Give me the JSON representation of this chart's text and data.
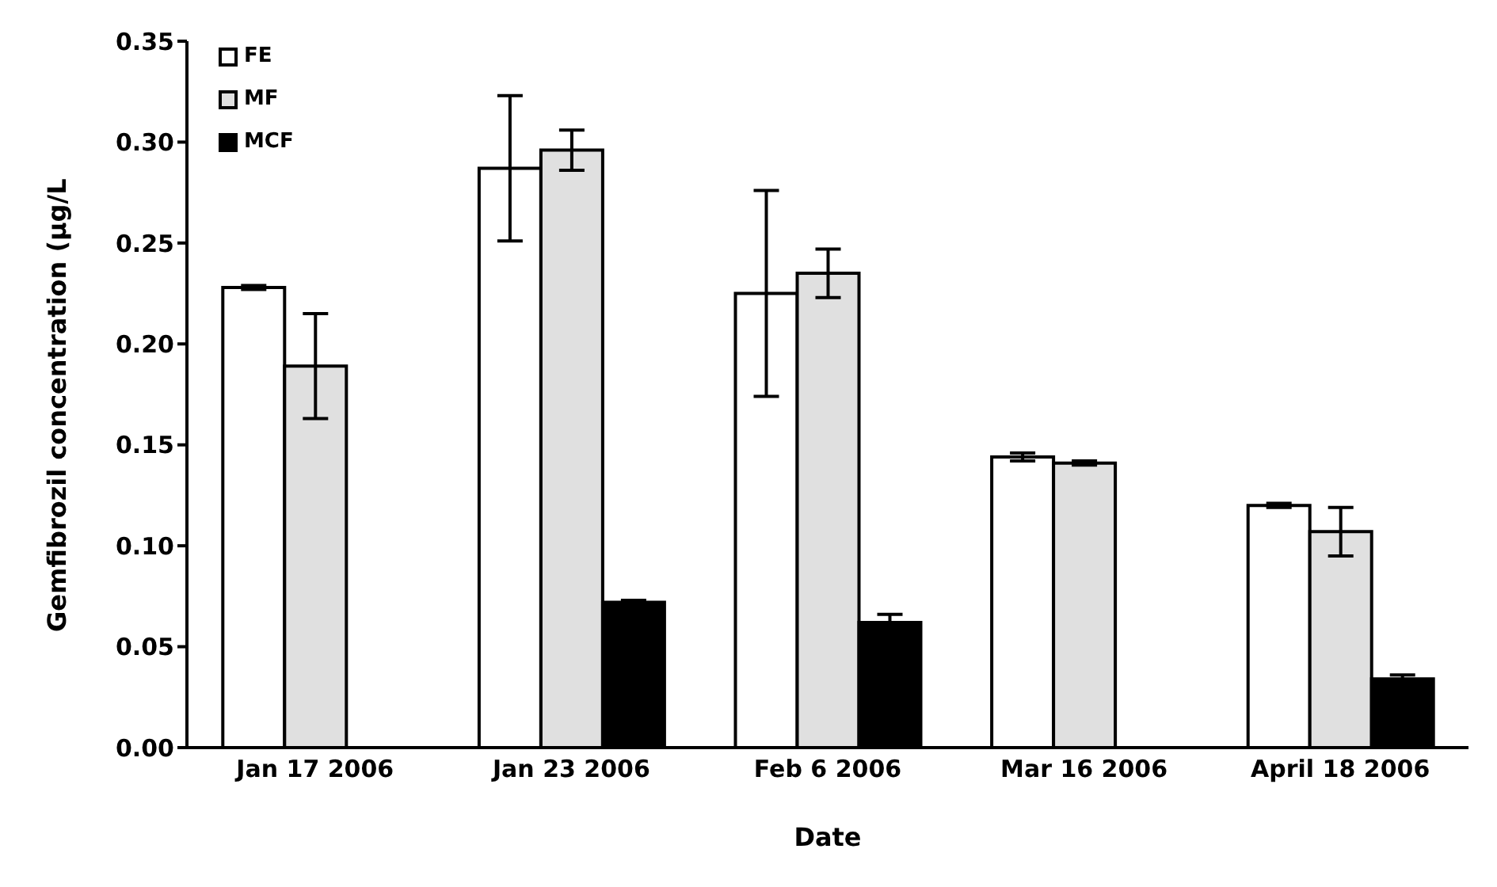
{
  "chart_data": {
    "type": "bar",
    "xlabel": "Date",
    "ylabel": "Gemfibrozil concentration (µg/L",
    "categories": [
      "Jan 17 2006",
      "Jan 23 2006",
      "Feb 6 2006",
      "Mar 16 2006",
      "April 18 2006"
    ],
    "series": [
      {
        "name": "FE",
        "color": "#ffffff",
        "values": [
          0.228,
          0.287,
          0.225,
          0.144,
          0.12
        ],
        "errors": [
          0.001,
          0.036,
          0.051,
          0.002,
          0.001
        ]
      },
      {
        "name": "MF",
        "color": "#e0e0e0",
        "values": [
          0.189,
          0.296,
          0.235,
          0.141,
          0.107
        ],
        "errors": [
          0.026,
          0.01,
          0.012,
          0.001,
          0.012
        ]
      },
      {
        "name": "MCF",
        "color": "#000000",
        "values": [
          null,
          0.072,
          0.062,
          null,
          0.034
        ],
        "errors": [
          null,
          0.001,
          0.004,
          null,
          0.002
        ]
      }
    ],
    "ylim": [
      0,
      0.35
    ],
    "yticks": [
      {
        "value": 0,
        "label": "0.00"
      },
      {
        "value": 0.05,
        "label": "0.05"
      },
      {
        "value": 0.1,
        "label": "0.10"
      },
      {
        "value": 0.15,
        "label": "0.15"
      },
      {
        "value": 0.2,
        "label": "0.20"
      },
      {
        "value": 0.25,
        "label": "0.25"
      },
      {
        "value": 0.3,
        "label": "0.30"
      },
      {
        "value": 0.35,
        "label": "0.35"
      }
    ],
    "grid": false,
    "legend": "top left"
  }
}
